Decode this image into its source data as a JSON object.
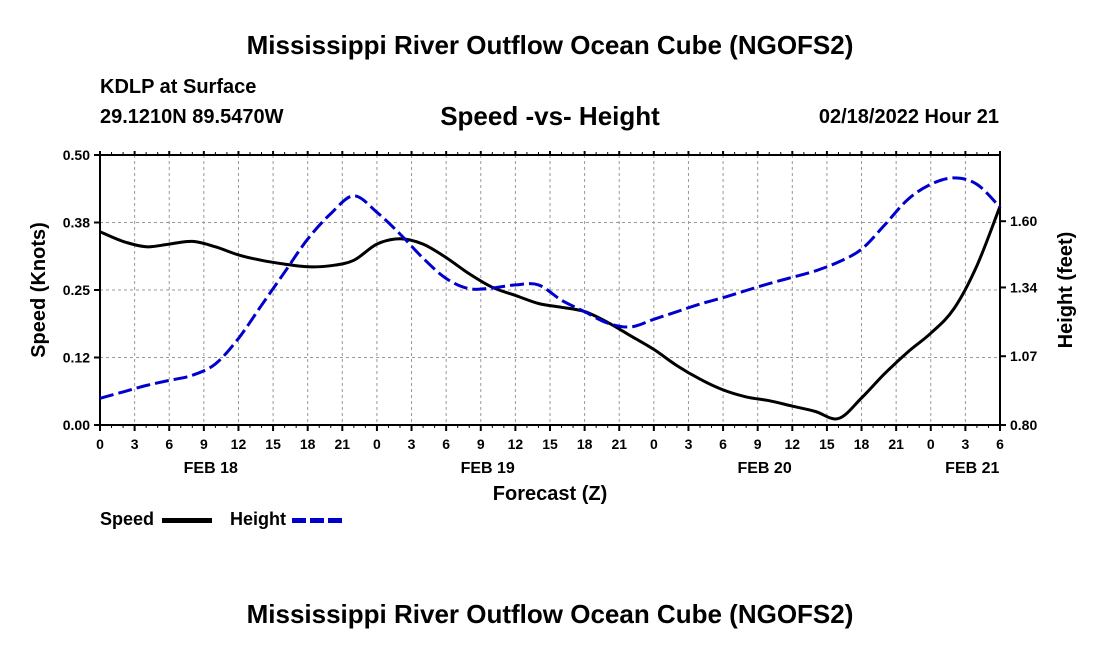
{
  "title": "Mississippi River Outflow Ocean Cube (NGOFS2)",
  "title_repeat": "Mississippi River Outflow Ocean Cube (NGOFS2)",
  "station": {
    "name": "KDLP at Surface",
    "coords": "29.1210N  89.5470W"
  },
  "timestamp": "02/18/2022 Hour 21",
  "legend": {
    "speed_label": "Speed",
    "height_label": "Height"
  },
  "colors": {
    "speed": "#000000",
    "height": "#0000cc"
  },
  "chart_data": {
    "type": "line",
    "title": "Speed -vs- Height",
    "xlabel": "Forecast (Z)",
    "ylabel": "Speed (Knots)",
    "y2label": "Height (feet)",
    "x_range": [
      0,
      78
    ],
    "ylim": [
      0,
      0.5
    ],
    "y2lim": [
      0.8,
      1.86
    ],
    "grid": true,
    "x_tick_positions": [
      0,
      3,
      6,
      9,
      12,
      15,
      18,
      21,
      24,
      27,
      30,
      33,
      36,
      39,
      42,
      45,
      48,
      51,
      54,
      57,
      60,
      63,
      66,
      69,
      72,
      75,
      78
    ],
    "x_tick_labels": [
      "0",
      "3",
      "6",
      "9",
      "12",
      "15",
      "18",
      "21",
      "0",
      "3",
      "6",
      "9",
      "12",
      "15",
      "18",
      "21",
      "0",
      "3",
      "6",
      "9",
      "12",
      "15",
      "18",
      "21",
      "0",
      "3",
      "6"
    ],
    "date_labels": [
      {
        "x": 9.6,
        "label": "FEB 18"
      },
      {
        "x": 33.6,
        "label": "FEB 19"
      },
      {
        "x": 57.6,
        "label": "FEB 20"
      },
      {
        "x": 75.6,
        "label": "FEB 21"
      }
    ],
    "y_ticks": [
      0.0,
      0.125,
      0.25,
      0.375,
      0.5
    ],
    "y_tick_labels": [
      "0.00",
      "0.12",
      "0.25",
      "0.38",
      "0.50"
    ],
    "y2_ticks": [
      0.8,
      1.07,
      1.34,
      1.6
    ],
    "y2_tick_labels": [
      "0.80",
      "1.07",
      "1.34",
      "1.60"
    ],
    "series": [
      {
        "name": "Speed",
        "axis": "left",
        "style": "solid",
        "x": [
          0,
          2,
          4,
          6,
          8,
          10,
          12,
          14,
          16,
          18,
          20,
          22,
          24,
          26,
          28,
          30,
          32,
          34,
          36,
          38,
          40,
          42,
          44,
          46,
          48,
          50,
          52,
          54,
          56,
          58,
          60,
          62,
          64,
          66,
          68,
          70,
          72,
          74,
          76,
          78
        ],
        "values": [
          0.358,
          0.34,
          0.33,
          0.335,
          0.34,
          0.33,
          0.315,
          0.305,
          0.298,
          0.293,
          0.295,
          0.305,
          0.335,
          0.345,
          0.335,
          0.31,
          0.28,
          0.255,
          0.24,
          0.225,
          0.218,
          0.21,
          0.19,
          0.165,
          0.14,
          0.11,
          0.085,
          0.065,
          0.052,
          0.045,
          0.035,
          0.025,
          0.012,
          0.05,
          0.095,
          0.135,
          0.17,
          0.215,
          0.295,
          0.405
        ]
      },
      {
        "name": "Height",
        "axis": "right",
        "style": "dashed",
        "x": [
          0,
          2,
          4,
          6,
          8,
          10,
          12,
          14,
          16,
          18,
          20,
          22,
          24,
          26,
          28,
          30,
          32,
          34,
          36,
          38,
          40,
          42,
          44,
          46,
          48,
          50,
          52,
          54,
          56,
          58,
          60,
          62,
          64,
          66,
          68,
          70,
          72,
          74,
          76,
          78
        ],
        "values": [
          0.905,
          0.93,
          0.955,
          0.975,
          0.995,
          1.04,
          1.14,
          1.27,
          1.4,
          1.53,
          1.63,
          1.7,
          1.635,
          1.55,
          1.455,
          1.375,
          1.335,
          1.338,
          1.35,
          1.35,
          1.29,
          1.245,
          1.2,
          1.185,
          1.215,
          1.245,
          1.275,
          1.3,
          1.328,
          1.355,
          1.38,
          1.405,
          1.44,
          1.49,
          1.585,
          1.685,
          1.745,
          1.77,
          1.745,
          1.655
        ]
      }
    ]
  }
}
